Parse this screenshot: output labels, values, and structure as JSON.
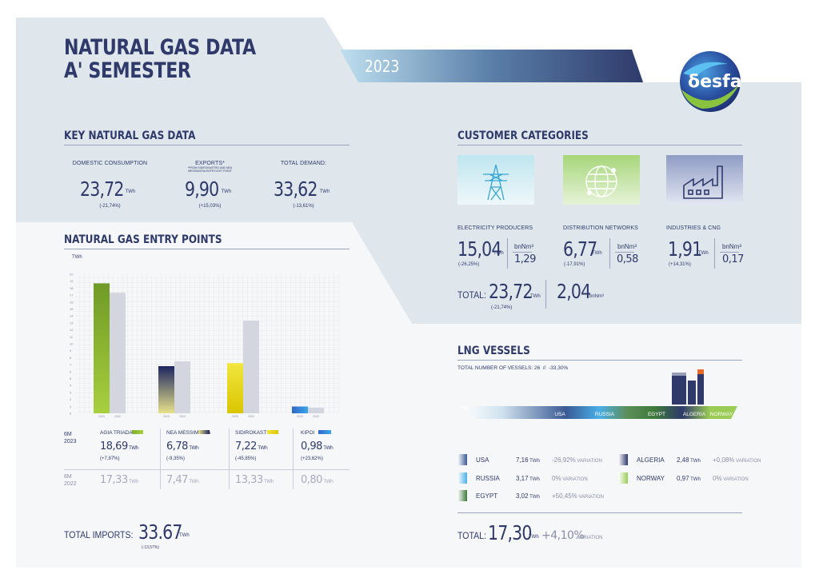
{
  "colors": {
    "navy": "#2f3a6b",
    "green": "#7fae2d",
    "yellow": "#e8d21a",
    "blue": "#3a8fd9",
    "grey": "#d3d5df",
    "panel": "#dfe7ed"
  },
  "header": {
    "title_line1": "NATURAL GAS DATA",
    "title_line2": "A' SEMESTER",
    "year": "2023",
    "logo_text": "δesfa"
  },
  "key_data": {
    "title": "KEY NATURAL GAS DATA",
    "items": [
      {
        "label": "DOMESTIC CONSUMPTION",
        "note": "",
        "value": "23,72",
        "unit": "TWh",
        "change": "(-21,74%)"
      },
      {
        "label": "EXPORTS*",
        "note": "*FROM SIDIROKASTRO AND NEA MESSIMVRIA ENTRY-EXIT POINT",
        "value": "9,90",
        "unit": "TWh",
        "change": "(+15,03%)"
      },
      {
        "label": "TOTAL DEMAND:",
        "note": "",
        "value": "33,62",
        "unit": "TWh",
        "change": "(-13,61%)"
      }
    ]
  },
  "customers": {
    "title": "CUSTOMER CATEGORIES",
    "items": [
      {
        "label": "ELECTRICITY PRODUCERS",
        "value": "15,04",
        "unit": "TWh",
        "change": "(-26,25%)",
        "vol_unit": "bnNm³",
        "vol": "1,29",
        "icon": "power-tower-icon"
      },
      {
        "label": "DISTRIBUTION NETWORKS",
        "value": "6,77",
        "unit": "TWh",
        "change": "(-17,91%)",
        "vol_unit": "bnNm³",
        "vol": "0,58",
        "icon": "network-globe-icon"
      },
      {
        "label": "INDUSTRIES & CNG",
        "value": "1,91",
        "unit": "TWh",
        "change": "(+14,31%)",
        "vol_unit": "bnNm³",
        "vol": "0,17",
        "icon": "factory-icon"
      }
    ],
    "total_label": "TOTAL:",
    "total_value": "23,72",
    "total_unit": "TWh",
    "total_change": "(-21,74%)",
    "total_vol": "2,04",
    "total_vol_unit": "bnNm³"
  },
  "chart_data": {
    "type": "bar",
    "title": "NATURAL GAS ENTRY POINTS",
    "ylabel": "TWh",
    "ylim": [
      0,
      20
    ],
    "yticks": [
      "0",
      "1",
      "2",
      "3",
      "4",
      "5",
      "6",
      "7",
      "8",
      "9",
      "10",
      "11",
      "12",
      "13",
      "14",
      "15",
      "16",
      "17",
      "18",
      "19",
      "20"
    ],
    "categories": [
      "AGIA TRIADA",
      "NEA MESSIMVRIA",
      "SIDIROKASTRO",
      "KIPOI"
    ],
    "bar_labels": [
      "2023",
      "2022"
    ],
    "series": [
      {
        "name": "2023",
        "values": [
          18.69,
          6.78,
          7.22,
          0.98
        ]
      },
      {
        "name": "2022",
        "values": [
          17.33,
          7.47,
          13.33,
          0.8
        ]
      }
    ],
    "grid": true
  },
  "entry_table": {
    "row1_label_a": "6M",
    "row1_label_b": "2023",
    "row2_label_a": "6M",
    "row2_label_b": "2022",
    "points": [
      {
        "name": "AGIA TRIADA",
        "v2023": "18,69",
        "unit": "TWh",
        "change": "(+7,87%)",
        "v2022": "17,33"
      },
      {
        "name": "NEA MESSIMVRIA",
        "v2023": "6,78",
        "unit": "TWh",
        "change": "(-9,35%)",
        "v2022": "7,47"
      },
      {
        "name": "SIDIROKASTRO",
        "v2023": "7,22",
        "unit": "TWh",
        "change": "(-45,85%)",
        "v2022": "13,33"
      },
      {
        "name": "KIPOI",
        "v2023": "0,98",
        "unit": "TWh",
        "change": "(+23,62%)",
        "v2022": "0,80"
      }
    ],
    "total_label": "TOTAL IMPORTS:",
    "total_value": "33.67",
    "total_unit": "TWh",
    "total_change": "(-13,57%)"
  },
  "lng": {
    "title": "LNG VESSELS",
    "subtitle": "TOTAL NUMBER OF VESSELS: 26  //  -33,30%",
    "ribbon": [
      "USA",
      "RUSSIA",
      "EGYPT",
      "ALGERIA",
      "NORWAY"
    ],
    "rows": [
      {
        "name": "USA",
        "value": "7,16",
        "unit": "TWh",
        "change": "-26,92%",
        "change_suffix": "VARIATION",
        "color": "#3a5a94"
      },
      {
        "name": "RUSSIA",
        "value": "3,17",
        "unit": "TWh",
        "change": "0%",
        "change_suffix": "VARIATION",
        "color": "#4aaee8"
      },
      {
        "name": "EGYPT",
        "value": "3,02",
        "unit": "TWh",
        "change": "+50,45%",
        "change_suffix": "VARIATION",
        "color": "#3f7a3a"
      },
      {
        "name": "ALGERIA",
        "value": "2,48",
        "unit": "TWh",
        "change": "+0,08%",
        "change_suffix": "VARIATION",
        "color": "#2f3a6b"
      },
      {
        "name": "NORWAY",
        "value": "0,97",
        "unit": "TWh",
        "change": "0%",
        "change_suffix": "VARIATION",
        "color": "#9acb55"
      }
    ],
    "total_label": "TOTAL:",
    "total_value": "17,30",
    "total_unit": "TWh",
    "total_change": "+4,10%",
    "total_suffix": "VARIATION"
  }
}
